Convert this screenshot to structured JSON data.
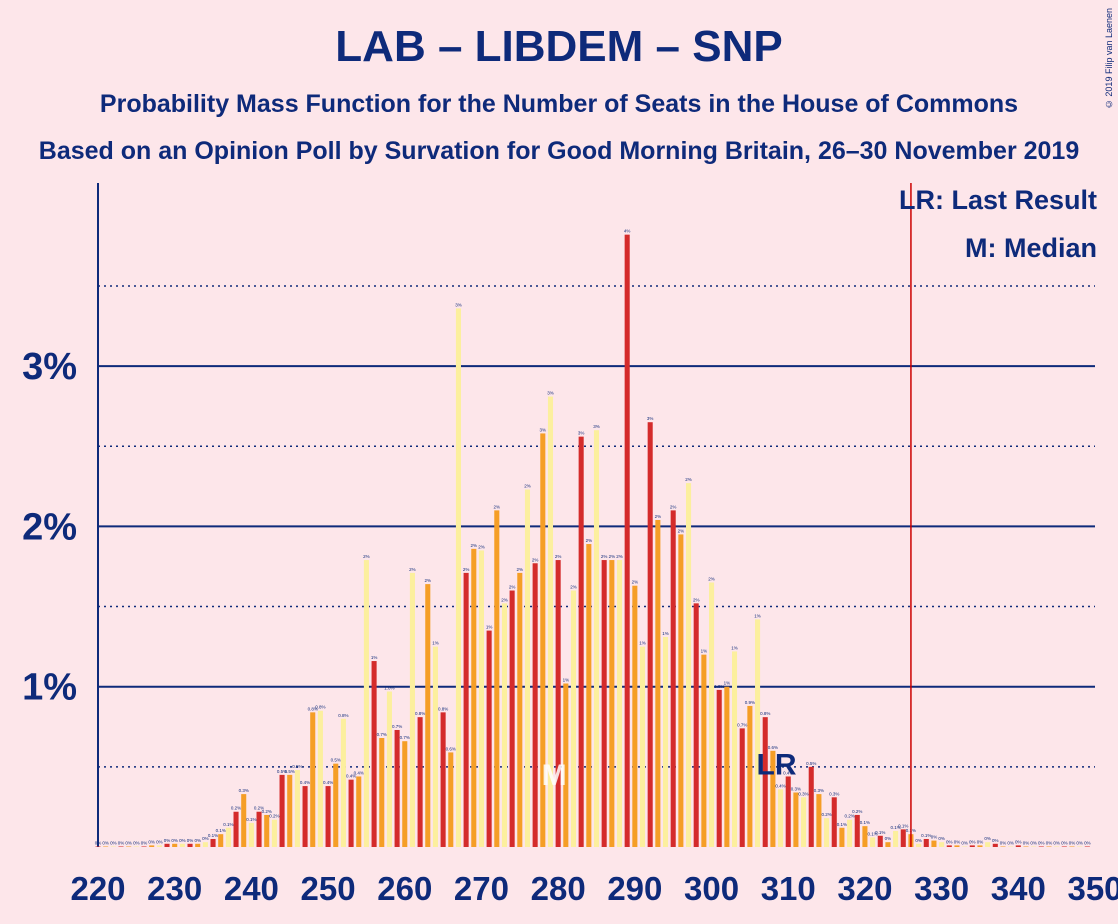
{
  "header": {
    "title": "LAB – LIBDEM – SNP",
    "subtitle": "Probability Mass Function for the Number of Seats in the House of Commons",
    "source": "Based on an Opinion Poll by Survation for Good Morning Britain, 26–30 November 2019",
    "copyright": "© 2019 Filip van Laenen"
  },
  "legend": {
    "lr": "LR: Last Result",
    "m": "M: Median"
  },
  "marker_labels": {
    "lr": "LR",
    "m": "M"
  },
  "colors": {
    "background": "#fde6ea",
    "text": "#0e2a7a",
    "red": "#d42b2b",
    "orange": "#f59e26",
    "yellow": "#fcef9e",
    "majority_line": "#cc0000"
  },
  "chart_data": {
    "type": "bar",
    "x_axis_ticks": [
      220,
      230,
      240,
      250,
      260,
      270,
      280,
      290,
      300,
      310,
      320,
      330,
      340,
      350
    ],
    "y_axis_ticks": [
      "1%",
      "2%",
      "3%"
    ],
    "xlim": [
      220,
      350
    ],
    "ylim": [
      0,
      4.15
    ],
    "majority_line_x": 326,
    "last_result_x": 309,
    "median_x": 280,
    "bar_color_cycle": [
      "red",
      "orange",
      "yellow"
    ],
    "seats": [
      220,
      221,
      222,
      223,
      224,
      225,
      226,
      227,
      228,
      229,
      230,
      231,
      232,
      233,
      234,
      235,
      236,
      237,
      238,
      239,
      240,
      241,
      242,
      243,
      244,
      245,
      246,
      247,
      248,
      249,
      250,
      251,
      252,
      253,
      254,
      255,
      256,
      257,
      258,
      259,
      260,
      261,
      262,
      263,
      264,
      265,
      266,
      267,
      268,
      269,
      270,
      271,
      272,
      273,
      274,
      275,
      276,
      277,
      278,
      279,
      280,
      281,
      282,
      283,
      284,
      285,
      286,
      287,
      288,
      289,
      290,
      291,
      292,
      293,
      294,
      295,
      296,
      297,
      298,
      299,
      300,
      301,
      302,
      303,
      304,
      305,
      306,
      307,
      308,
      309,
      310,
      311,
      312,
      313,
      314,
      315,
      316,
      317,
      318,
      319,
      320,
      321,
      322,
      323,
      324,
      325,
      326,
      327,
      328,
      329,
      330,
      331,
      332,
      333,
      334,
      335,
      336,
      337,
      338,
      339,
      340,
      341,
      342,
      343,
      344,
      345,
      346,
      347,
      348,
      349
    ],
    "values": [
      0,
      0,
      0,
      0,
      0,
      0,
      0,
      0.01,
      0.01,
      0.02,
      0.02,
      0.02,
      0.02,
      0.02,
      0.03,
      0.05,
      0.08,
      0.12,
      0.22,
      0.33,
      0.15,
      0.22,
      0.2,
      0.17,
      0.45,
      0.45,
      0.48,
      0.38,
      0.84,
      0.85,
      0.38,
      0.52,
      0.8,
      0.42,
      0.44,
      1.79,
      1.16,
      0.68,
      0.97,
      0.73,
      0.66,
      1.71,
      0.81,
      1.64,
      1.25,
      0.84,
      0.59,
      3.36,
      1.71,
      1.86,
      1.85,
      1.35,
      2.1,
      1.52,
      1.6,
      1.71,
      2.23,
      1.77,
      2.58,
      2.81,
      1.79,
      1.02,
      1.6,
      2.56,
      1.89,
      2.6,
      1.79,
      1.79,
      1.79,
      3.82,
      1.63,
      1.25,
      2.65,
      2.04,
      1.31,
      2.1,
      1.95,
      2.27,
      1.52,
      1.2,
      1.65,
      0.98,
      1.0,
      1.22,
      0.74,
      0.88,
      1.42,
      0.81,
      0.6,
      0.36,
      0.44,
      0.34,
      0.31,
      0.5,
      0.33,
      0.18,
      0.31,
      0.12,
      0.17,
      0.2,
      0.13,
      0.06,
      0.07,
      0.03,
      0.1,
      0.11,
      0.08,
      0.02,
      0.05,
      0.04,
      0.03,
      0.01,
      0.01,
      0,
      0.01,
      0.01,
      0.03,
      0.02,
      0,
      0,
      0.01,
      0,
      0,
      0,
      0,
      0,
      0,
      0,
      0,
      0
    ]
  }
}
